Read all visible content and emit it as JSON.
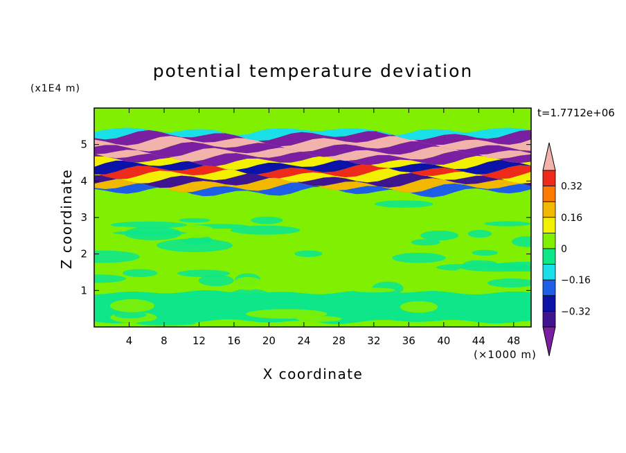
{
  "chart_data": {
    "type": "heatmap",
    "title": "potential temperature deviation",
    "xlabel": "X coordinate",
    "ylabel": "Z coordinate",
    "x_unit": "(×1000 m)",
    "y_unit": "(x1E4 m)",
    "time_label": "t=1.7712e+06",
    "xlim": [
      0,
      50
    ],
    "ylim": [
      0,
      6
    ],
    "x_ticks": [
      "4",
      "8",
      "12",
      "16",
      "20",
      "24",
      "28",
      "32",
      "36",
      "40",
      "44",
      "48"
    ],
    "y_ticks": [
      "1",
      "2",
      "3",
      "4",
      "5"
    ],
    "colorbar": {
      "levels": [
        -0.48,
        -0.4,
        -0.32,
        -0.24,
        -0.16,
        -0.08,
        0,
        0.08,
        0.16,
        0.24,
        0.32,
        0.4
      ],
      "tick_labels": [
        "0.32",
        "0.16",
        "0",
        "−0.16",
        "−0.32"
      ],
      "colors": [
        "#7b1fa2",
        "#3f148f",
        "#0b12a8",
        "#1e5ee6",
        "#19e0e8",
        "#0ee68a",
        "#80f000",
        "#f2f000",
        "#f2b800",
        "#ff7a00",
        "#ee2a1a",
        "#f2b3ad"
      ]
    },
    "bands": [
      {
        "z": [
          0.0,
          0.15
        ],
        "value": 0.04
      },
      {
        "z": [
          0.15,
          0.95
        ],
        "value": -0.02
      },
      {
        "z": [
          0.95,
          1.05
        ],
        "value": 0.05
      },
      {
        "z": [
          1.05,
          3.7
        ],
        "value": 0.03
      },
      {
        "z": [
          3.7,
          3.82
        ],
        "value": -0.2
      },
      {
        "z": [
          3.82,
          3.95
        ],
        "value": 0.2
      },
      {
        "z": [
          3.95,
          4.08
        ],
        "value": -0.4
      },
      {
        "z": [
          4.08,
          4.2
        ],
        "value": 0.1
      },
      {
        "z": [
          4.2,
          4.32
        ],
        "value": 0.35
      },
      {
        "z": [
          4.32,
          4.45
        ],
        "value": -0.3
      },
      {
        "z": [
          4.45,
          4.55
        ],
        "value": 0.12
      },
      {
        "z": [
          4.55,
          4.68
        ],
        "value": -0.44
      },
      {
        "z": [
          4.68,
          4.8
        ],
        "value": 0.42
      },
      {
        "z": [
          4.8,
          4.95
        ],
        "value": -0.46
      },
      {
        "z": [
          4.95,
          5.1
        ],
        "value": 0.45
      },
      {
        "z": [
          5.1,
          5.25
        ],
        "value": -0.42
      },
      {
        "z": [
          5.25,
          5.4
        ],
        "value": -0.1
      },
      {
        "z": [
          5.4,
          6.0
        ],
        "value": 0.03
      }
    ]
  }
}
